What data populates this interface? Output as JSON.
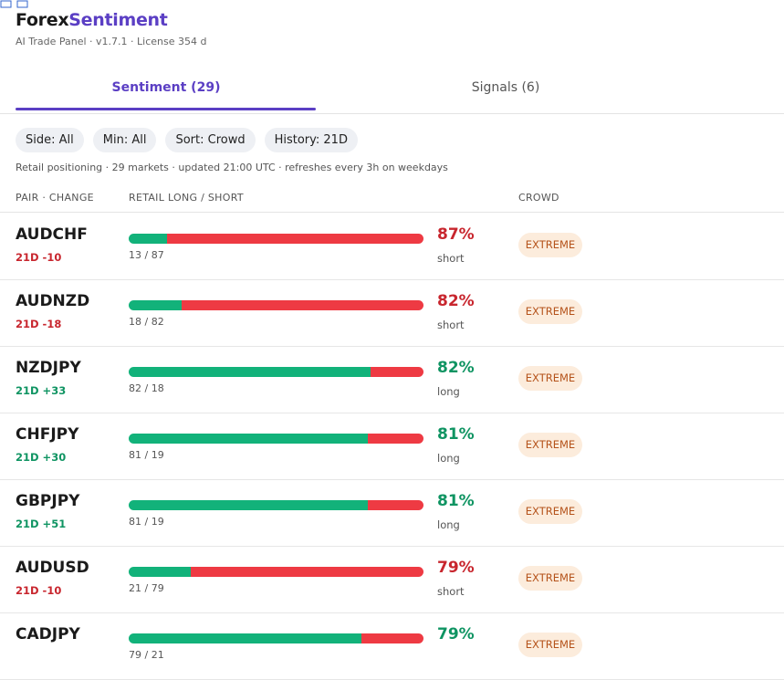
{
  "header": {
    "title_part1": "Forex",
    "title_part2": "Sentiment",
    "subtitle": "AI Trade Panel  ·  v1.7.1  ·  License 354 d"
  },
  "tabs": [
    {
      "label": "Sentiment (29)",
      "active": true
    },
    {
      "label": "Signals (6)",
      "active": false
    }
  ],
  "filters": [
    "Side: All",
    "Min: All",
    "Sort: Crowd",
    "History: 21D"
  ],
  "info": "Retail positioning  ·  29 markets  ·  updated 21:00 UTC  ·  refreshes every 3h on weekdays",
  "columns": {
    "pair": "PAIR  ·  CHANGE",
    "retail": "RETAIL  LONG / SHORT",
    "crowd": "CROWD"
  },
  "colors": {
    "long": "#12b27a",
    "short": "#ee3a43",
    "long_text": "#0f9462",
    "short_text": "#c8262e"
  },
  "rows": [
    {
      "pair": "AUDCHF",
      "change": "21D -10",
      "long": 13,
      "short": 87,
      "split": "13 / 87",
      "pct": "87%",
      "side": "short",
      "crowd": "EXTREME"
    },
    {
      "pair": "AUDNZD",
      "change": "21D -18",
      "long": 18,
      "short": 82,
      "split": "18 / 82",
      "pct": "82%",
      "side": "short",
      "crowd": "EXTREME"
    },
    {
      "pair": "NZDJPY",
      "change": "21D +33",
      "long": 82,
      "short": 18,
      "split": "82 / 18",
      "pct": "82%",
      "side": "long",
      "crowd": "EXTREME"
    },
    {
      "pair": "CHFJPY",
      "change": "21D +30",
      "long": 81,
      "short": 19,
      "split": "81 / 19",
      "pct": "81%",
      "side": "long",
      "crowd": "EXTREME"
    },
    {
      "pair": "GBPJPY",
      "change": "21D +51",
      "long": 81,
      "short": 19,
      "split": "81 / 19",
      "pct": "81%",
      "side": "long",
      "crowd": "EXTREME"
    },
    {
      "pair": "AUDUSD",
      "change": "21D -10",
      "long": 21,
      "short": 79,
      "split": "21 / 79",
      "pct": "79%",
      "side": "short",
      "crowd": "EXTREME"
    },
    {
      "pair": "CADJPY",
      "long": 79,
      "short": 21,
      "split": "79 / 21",
      "pct": "79%",
      "crowd": "EXTREME"
    }
  ]
}
